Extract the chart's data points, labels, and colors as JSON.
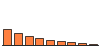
{
  "values": [
    100,
    75,
    58,
    44,
    33,
    24,
    16,
    10,
    5
  ],
  "bar_color": "#FF8040",
  "edge_color": "#000000",
  "background_color": "#ffffff",
  "ylim": [
    0,
    280
  ],
  "bar_width": 0.75,
  "edge_width": 0.5
}
